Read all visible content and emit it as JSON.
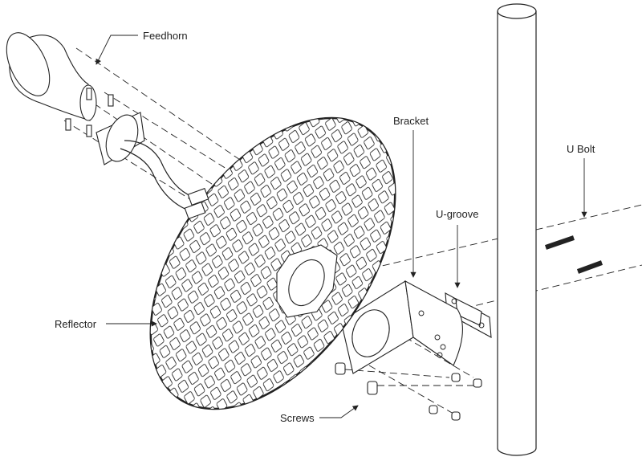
{
  "labels": [
    "Feedhorn",
    "Bracket",
    "U Bolt",
    "U-groove",
    "Reflector",
    "Screws"
  ]
}
